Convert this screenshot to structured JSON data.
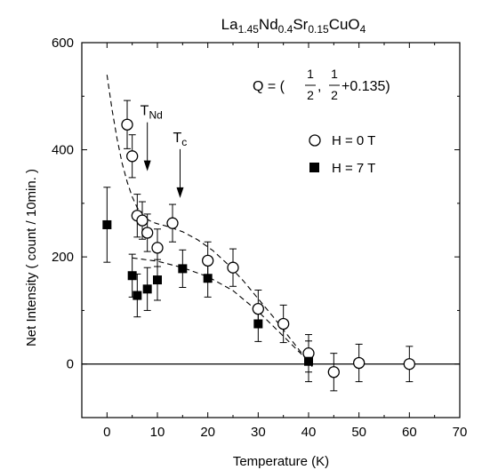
{
  "chart_data": {
    "type": "scatter",
    "title": {
      "main": "La",
      "sub1": "1.45",
      "mid1": "Nd",
      "sub2": "0.4",
      "mid2": "Sr",
      "sub3": "0.15",
      "mid3": "CuO",
      "sub4": "4"
    },
    "xlabel": "Temperature (K)",
    "ylabel": "Net Intensity ( count / 10min. )",
    "xlim": [
      -5,
      70
    ],
    "ylim": [
      -100,
      600
    ],
    "xticks": [
      "0",
      "10",
      "20",
      "30",
      "40",
      "50",
      "60",
      "70"
    ],
    "yticks": [
      "0",
      "200",
      "400",
      "600"
    ],
    "grid": false,
    "legend_position": "top-right",
    "q_label": {
      "prefix": "Q = (",
      "f1_num": "1",
      "f1_den": "2",
      "sep": ",",
      "f2_num": "1",
      "f2_den": "2",
      "suffix": "+0.135)"
    },
    "annotations": [
      {
        "main": "T",
        "sub": "Nd",
        "x": 8,
        "y": 360
      },
      {
        "main": "T",
        "sub": "c",
        "x": 14.5,
        "y": 310
      }
    ],
    "series": [
      {
        "name": "H = 0 T",
        "marker": "open-circle",
        "x": [
          4,
          5,
          6,
          7,
          8,
          10,
          13,
          20,
          25,
          30,
          35,
          40,
          45,
          50,
          60
        ],
        "y": [
          447,
          388,
          277,
          268,
          245,
          217,
          263,
          193,
          180,
          103,
          75,
          20,
          -15,
          2,
          0
        ],
        "err": [
          45,
          40,
          40,
          35,
          35,
          35,
          35,
          35,
          35,
          35,
          35,
          35,
          35,
          35,
          33
        ]
      },
      {
        "name": "H = 7 T",
        "marker": "filled-square",
        "x": [
          0,
          5,
          6,
          8,
          10,
          15,
          20,
          30,
          40
        ],
        "y": [
          260,
          165,
          128,
          140,
          157,
          178,
          160,
          75,
          5
        ],
        "err": [
          70,
          40,
          40,
          40,
          38,
          35,
          35,
          33,
          38
        ]
      }
    ],
    "guide_lines": [
      {
        "x": [
          0,
          1,
          2,
          3,
          4,
          5,
          6,
          7,
          8,
          9,
          10,
          12,
          15,
          18,
          21,
          24,
          27,
          30,
          33,
          36,
          39,
          41
        ],
        "y": [
          540,
          475,
          420,
          375,
          340,
          312,
          292,
          278,
          270,
          265,
          262,
          257,
          247,
          232,
          212,
          186,
          156,
          122,
          88,
          52,
          16,
          -8
        ]
      },
      {
        "x": [
          5,
          10,
          15,
          20,
          25,
          30,
          35,
          40
        ],
        "y": [
          198,
          192,
          180,
          163,
          137,
          98,
          52,
          5
        ]
      }
    ]
  }
}
